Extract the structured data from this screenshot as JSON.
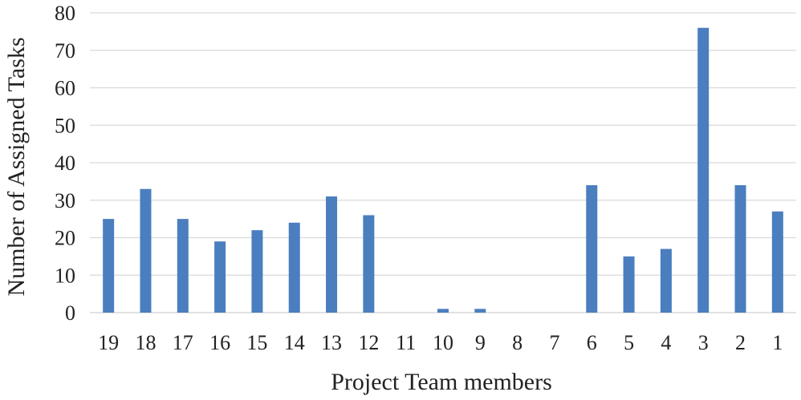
{
  "chart_data": {
    "type": "bar",
    "title": "",
    "xlabel": "Project Team members",
    "ylabel": "Number of Assigned Tasks",
    "categories": [
      "19",
      "18",
      "17",
      "16",
      "15",
      "14",
      "13",
      "12",
      "11",
      "10",
      "9",
      "8",
      "7",
      "6",
      "5",
      "4",
      "3",
      "2",
      "1"
    ],
    "values": [
      25,
      33,
      25,
      19,
      22,
      24,
      31,
      26,
      0,
      1,
      1,
      0,
      0,
      34,
      15,
      17,
      76,
      34,
      27
    ],
    "ylim": [
      0,
      80
    ],
    "yticks": [
      0,
      10,
      20,
      30,
      40,
      50,
      60,
      70,
      80
    ],
    "grid": true,
    "legend": "none",
    "colors": {
      "bar": "#4a7ebf",
      "grid": "#d9d9d9",
      "text": "#222222"
    }
  }
}
